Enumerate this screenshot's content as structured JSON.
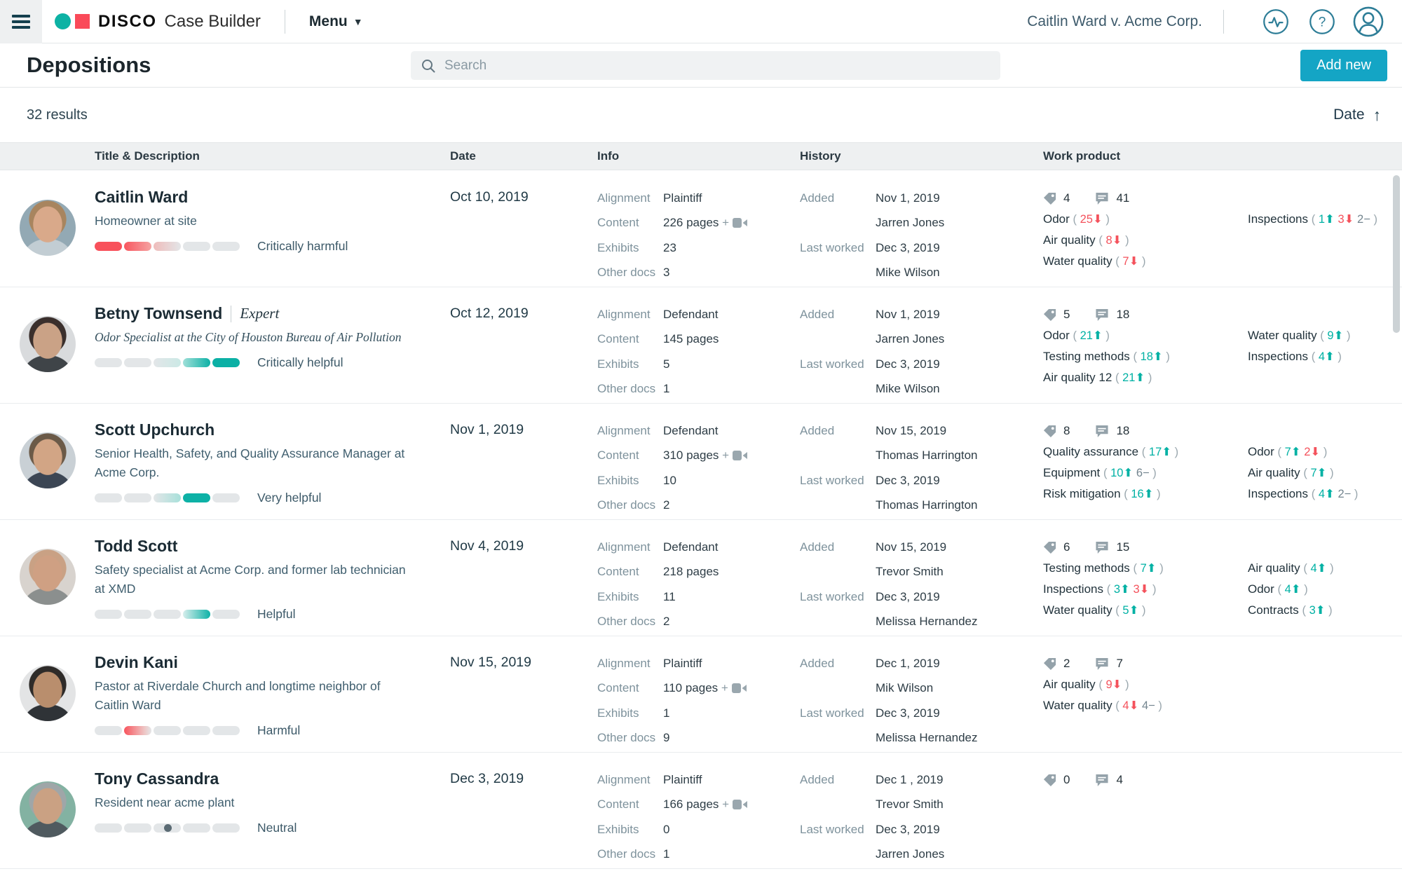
{
  "header": {
    "brand_bold": "DISCO",
    "brand_rest": "Case Builder",
    "menu_label": "Menu",
    "case_name": "Caitlin Ward v. Acme Corp."
  },
  "toolbar": {
    "page_title": "Depositions",
    "search_placeholder": "Search",
    "add_new_label": "Add new"
  },
  "results_bar": {
    "count_label": "32 results",
    "sort_label": "Date"
  },
  "table_columns": {
    "title": "Title & Description",
    "date": "Date",
    "info": "Info",
    "history": "History",
    "work_product": "Work product"
  },
  "labels": {
    "alignment": "Alignment",
    "content": "Content",
    "exhibits": "Exhibits",
    "other_docs": "Other docs",
    "added": "Added",
    "last_worked": "Last worked"
  },
  "colors": {
    "accent_teal": "#00b1a4",
    "accent_red": "#f4525c",
    "button_teal": "#14a5c5",
    "meter_gray": "#e3e6e8"
  },
  "rows": [
    {
      "name": "Caitlin Ward",
      "name_suffix": "",
      "description": "Homeowner at site",
      "description_serif": false,
      "meter_style": "critically-harmful",
      "meter_label": "Critically harmful",
      "date": "Oct 10, 2019",
      "info": {
        "alignment": "Plaintiff",
        "content": "226 pages",
        "has_video": true,
        "exhibits": "23",
        "other_docs": "3"
      },
      "history": {
        "added_date": "Nov 1, 2019",
        "added_by": "Jarren Jones",
        "last_worked_date": "Dec 3, 2019",
        "last_worked_by": "Mike Wilson"
      },
      "work_product": {
        "tags_count": "4",
        "comments_count": "41",
        "columns": [
          [
            {
              "label": "Odor",
              "stats": [
                {
                  "value": "25",
                  "dir": "down"
                }
              ]
            },
            {
              "label": "Air quality",
              "stats": [
                {
                  "value": "8",
                  "dir": "down"
                }
              ]
            },
            {
              "label": "Water quality",
              "stats": [
                {
                  "value": "7",
                  "dir": "down"
                }
              ]
            }
          ],
          [
            {
              "label": "Inspections",
              "stats": [
                {
                  "value": "1",
                  "dir": "up"
                },
                {
                  "value": "3",
                  "dir": "down"
                },
                {
                  "value": "2",
                  "dir": "flat"
                }
              ]
            }
          ]
        ]
      },
      "avatar": {
        "bg": "#93a9b4",
        "hair": "#a8855f",
        "skin": "#d9a98a",
        "shirt": "#c2cdd3"
      }
    },
    {
      "name": "Betny Townsend",
      "name_suffix": "Expert",
      "description": "Odor Specialist at the City of Houston Bureau of Air Pollution",
      "description_serif": true,
      "meter_style": "critically-helpful",
      "meter_label": "Critically helpful",
      "date": "Oct 12, 2019",
      "info": {
        "alignment": "Defendant",
        "content": "145 pages",
        "has_video": false,
        "exhibits": "5",
        "other_docs": "1"
      },
      "history": {
        "added_date": "Nov 1, 2019",
        "added_by": "Jarren Jones",
        "last_worked_date": "Dec 3, 2019",
        "last_worked_by": "Mike Wilson"
      },
      "work_product": {
        "tags_count": "5",
        "comments_count": "18",
        "columns": [
          [
            {
              "label": "Odor",
              "stats": [
                {
                  "value": "21",
                  "dir": "up"
                }
              ]
            },
            {
              "label": "Testing methods",
              "stats": [
                {
                  "value": "18",
                  "dir": "up"
                }
              ]
            },
            {
              "label": "Air quality 12",
              "stats": [
                {
                  "value": "21",
                  "dir": "up"
                }
              ]
            }
          ],
          [
            {
              "label": "Water quality",
              "stats": [
                {
                  "value": "9",
                  "dir": "up"
                }
              ]
            },
            {
              "label": "Inspections",
              "stats": [
                {
                  "value": "4",
                  "dir": "up"
                }
              ]
            }
          ]
        ]
      },
      "avatar": {
        "bg": "#d9dbdd",
        "hair": "#3a2f2c",
        "skin": "#caa286",
        "shirt": "#3f4448"
      }
    },
    {
      "name": "Scott Upchurch",
      "name_suffix": "",
      "description": "Senior Health, Safety, and Quality Assurance Manager at Acme Corp.",
      "description_serif": false,
      "meter_style": "very-helpful",
      "meter_label": "Very helpful",
      "date": "Nov 1, 2019",
      "info": {
        "alignment": "Defendant",
        "content": "310 pages",
        "has_video": true,
        "exhibits": "10",
        "other_docs": "2"
      },
      "history": {
        "added_date": "Nov 15, 2019",
        "added_by": "Thomas Harrington",
        "last_worked_date": "Dec 3, 2019",
        "last_worked_by": "Thomas Harrington"
      },
      "work_product": {
        "tags_count": "8",
        "comments_count": "18",
        "columns": [
          [
            {
              "label": "Quality assurance",
              "stats": [
                {
                  "value": "17",
                  "dir": "up"
                }
              ]
            },
            {
              "label": "Equipment",
              "stats": [
                {
                  "value": "10",
                  "dir": "up"
                },
                {
                  "value": "6",
                  "dir": "flat"
                }
              ]
            },
            {
              "label": "Risk mitigation",
              "stats": [
                {
                  "value": "16",
                  "dir": "up"
                }
              ]
            }
          ],
          [
            {
              "label": "Odor",
              "stats": [
                {
                  "value": "7",
                  "dir": "up"
                },
                {
                  "value": "2",
                  "dir": "down"
                }
              ]
            },
            {
              "label": "Air quality",
              "stats": [
                {
                  "value": "7",
                  "dir": "up"
                }
              ]
            },
            {
              "label": "Inspections",
              "stats": [
                {
                  "value": "4",
                  "dir": "up"
                },
                {
                  "value": "2",
                  "dir": "flat"
                }
              ]
            }
          ]
        ]
      },
      "avatar": {
        "bg": "#c9d0d5",
        "hair": "#6b5a48",
        "skin": "#d2a585",
        "shirt": "#3c4654"
      }
    },
    {
      "name": "Todd Scott",
      "name_suffix": "",
      "description": "Safety specialist at Acme Corp. and former lab technician at XMD",
      "description_serif": false,
      "meter_style": "helpful",
      "meter_label": "Helpful",
      "date": "Nov 4, 2019",
      "info": {
        "alignment": "Defendant",
        "content": "218 pages",
        "has_video": false,
        "exhibits": "11",
        "other_docs": "2"
      },
      "history": {
        "added_date": "Nov 15, 2019",
        "added_by": "Trevor Smith",
        "last_worked_date": "Dec 3, 2019",
        "last_worked_by": "Melissa Hernandez"
      },
      "work_product": {
        "tags_count": "6",
        "comments_count": "15",
        "columns": [
          [
            {
              "label": "Testing methods",
              "stats": [
                {
                  "value": "7",
                  "dir": "up"
                }
              ]
            },
            {
              "label": "Inspections",
              "stats": [
                {
                  "value": "3",
                  "dir": "up"
                },
                {
                  "value": "3",
                  "dir": "down"
                }
              ]
            },
            {
              "label": "Water quality",
              "stats": [
                {
                  "value": "5",
                  "dir": "up"
                }
              ]
            }
          ],
          [
            {
              "label": "Air quality",
              "stats": [
                {
                  "value": "4",
                  "dir": "up"
                }
              ]
            },
            {
              "label": "Odor",
              "stats": [
                {
                  "value": "4",
                  "dir": "up"
                }
              ]
            },
            {
              "label": "Contracts",
              "stats": [
                {
                  "value": "3",
                  "dir": "up"
                }
              ]
            }
          ]
        ]
      },
      "avatar": {
        "bg": "#d8d3ce",
        "hair": "#c9a184",
        "skin": "#cfa083",
        "shirt": "#8b8f8e"
      }
    },
    {
      "name": "Devin Kani",
      "name_suffix": "",
      "description": "Pastor at Riverdale Church and longtime neighbor of Caitlin Ward",
      "description_serif": false,
      "meter_style": "harmful",
      "meter_label": "Harmful",
      "date": "Nov 15, 2019",
      "info": {
        "alignment": "Plaintiff",
        "content": "110 pages",
        "has_video": true,
        "exhibits": "1",
        "other_docs": "9"
      },
      "history": {
        "added_date": "Dec 1, 2019",
        "added_by": "Mik Wilson",
        "last_worked_date": "Dec 3, 2019",
        "last_worked_by": "Melissa Hernandez"
      },
      "work_product": {
        "tags_count": "2",
        "comments_count": "7",
        "columns": [
          [
            {
              "label": "Air quality",
              "stats": [
                {
                  "value": "9",
                  "dir": "down"
                }
              ]
            },
            {
              "label": "Water quality",
              "stats": [
                {
                  "value": "4",
                  "dir": "down"
                },
                {
                  "value": "4",
                  "dir": "flat"
                }
              ]
            }
          ]
        ]
      },
      "avatar": {
        "bg": "#e3e4e5",
        "hair": "#2e2b29",
        "skin": "#b98e6d",
        "shirt": "#2f3337"
      }
    },
    {
      "name": "Tony Cassandra",
      "name_suffix": "",
      "description": "Resident near acme plant",
      "description_serif": false,
      "meter_style": "neutral",
      "meter_label": "Neutral",
      "date": "Dec 3, 2019",
      "info": {
        "alignment": "Plaintiff",
        "content": "166 pages",
        "has_video": true,
        "exhibits": "0",
        "other_docs": "1"
      },
      "history": {
        "added_date": "Dec 1 , 2019",
        "added_by": "Trevor Smith",
        "last_worked_date": "Dec 3, 2019",
        "last_worked_by": "Jarren Jones"
      },
      "work_product": {
        "tags_count": "0",
        "comments_count": "4",
        "columns": []
      },
      "avatar": {
        "bg": "#83b2a2",
        "hair": "#9fa6a8",
        "skin": "#caa183",
        "shirt": "#4f5a5f"
      }
    }
  ]
}
